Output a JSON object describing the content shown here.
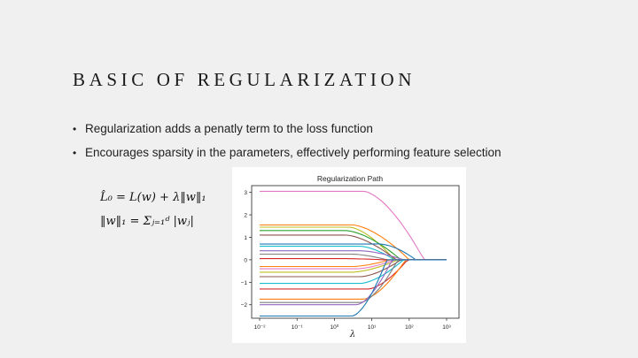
{
  "slide": {
    "title": "BASIC OF REGULARIZATION",
    "bullets": [
      "Regularization adds a penatly term to the loss function",
      "Encourages sparsity in the parameters, effectively performing feature selection"
    ]
  },
  "formulas": {
    "line1": "L̂₀ = L(w) + λ‖w‖₁",
    "line2": "‖w‖₁ = Σⱼ₌₁ᵈ |wⱼ|"
  },
  "chart_data": {
    "type": "line",
    "title": "Regularization Path",
    "xlabel": "λ",
    "ylabel": "",
    "xscale": "log",
    "xlim": [
      0.01,
      1000
    ],
    "ylim": [
      -2.6,
      3.3
    ],
    "grid": false,
    "x_ticks": [
      "10⁻²",
      "10⁻¹",
      "10⁰",
      "10¹",
      "10²",
      "10³"
    ],
    "y_ticks": [
      "3",
      "2",
      "1",
      "0",
      "−1",
      "−2"
    ],
    "series": [
      {
        "color": "#e377c2",
        "start": 3.05,
        "peak": 0,
        "drop_start": 6,
        "zero_at": 250
      },
      {
        "color": "#ff7f0e",
        "start": 1.55,
        "peak": 0,
        "drop_start": 3,
        "zero_at": 100
      },
      {
        "color": "#bcbd22",
        "start": 1.45,
        "peak": 0,
        "drop_start": 2.5,
        "zero_at": 40
      },
      {
        "color": "#2ca02c",
        "start": 1.3,
        "peak": 0,
        "drop_start": 2,
        "zero_at": 60
      },
      {
        "color": "#8c564b",
        "start": 1.1,
        "peak": 0,
        "drop_start": 2,
        "zero_at": 45
      },
      {
        "color": "#1f77b4",
        "start": 0.7,
        "peak": 0.8,
        "drop_start": 10,
        "zero_at": 150
      },
      {
        "color": "#17becf",
        "start": 0.6,
        "peak": 0,
        "drop_start": 5,
        "zero_at": 40
      },
      {
        "color": "#9467bd",
        "start": 0.4,
        "peak": 0,
        "drop_start": 5,
        "zero_at": 70
      },
      {
        "color": "#7f7f7f",
        "start": 0.25,
        "peak": 0,
        "drop_start": 3,
        "zero_at": 25
      },
      {
        "color": "#d62728",
        "start": 0.05,
        "peak": 0,
        "drop_start": 2,
        "zero_at": 20
      },
      {
        "color": "#ff7f0e",
        "start": -0.3,
        "peak": 0,
        "drop_start": 3,
        "zero_at": 30
      },
      {
        "color": "#e377c2",
        "start": -0.4,
        "peak": 0,
        "drop_start": 4,
        "zero_at": 40
      },
      {
        "color": "#bcbd22",
        "start": -0.55,
        "peak": 0,
        "drop_start": 3,
        "zero_at": 50
      },
      {
        "color": "#8c564b",
        "start": -0.75,
        "peak": 0,
        "drop_start": 5,
        "zero_at": 60
      },
      {
        "color": "#17becf",
        "start": -1.05,
        "peak": 0,
        "drop_start": 5,
        "zero_at": 70
      },
      {
        "color": "#d62728",
        "start": -1.3,
        "peak": 0,
        "drop_start": 8,
        "zero_at": 90
      },
      {
        "color": "#ff7f0e",
        "start": -1.75,
        "peak": 0,
        "drop_start": 6,
        "zero_at": 80
      },
      {
        "color": "#7f7f7f",
        "start": -1.9,
        "peak": 0,
        "drop_start": 5,
        "zero_at": 50
      },
      {
        "color": "#9467bd",
        "start": -2.0,
        "peak": 0,
        "drop_start": 4,
        "zero_at": 35
      },
      {
        "color": "#1f77b4",
        "start": -2.5,
        "peak": 0,
        "drop_start": 3,
        "zero_at": 25
      }
    ]
  }
}
